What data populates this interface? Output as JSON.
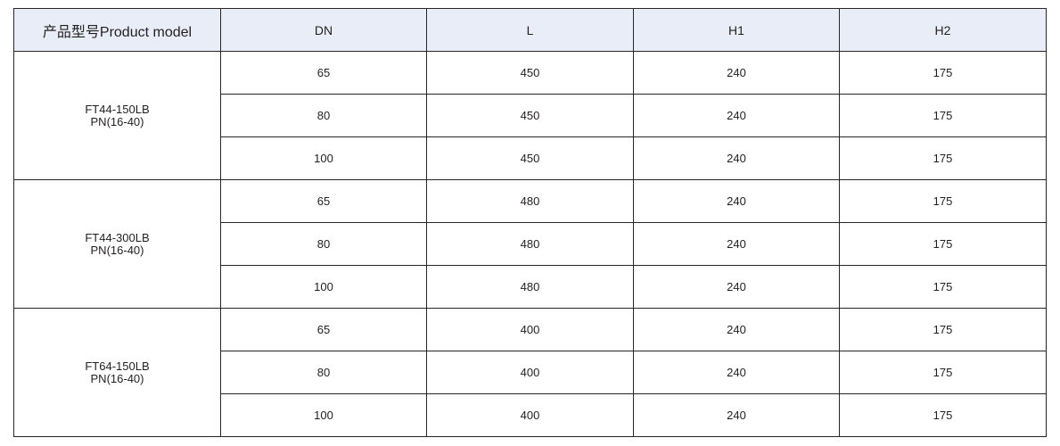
{
  "headers": [
    "产品型号Product model",
    "DN",
    "L",
    "H1",
    "H2"
  ],
  "groups": [
    {
      "model": "FT44-150LB",
      "pressure": "PN(16-40)",
      "rows": [
        {
          "DN": "65",
          "L": "450",
          "H1": "240",
          "H2": "175"
        },
        {
          "DN": "80",
          "L": "450",
          "H1": "240",
          "H2": "175"
        },
        {
          "DN": "100",
          "L": "450",
          "H1": "240",
          "H2": "175"
        }
      ]
    },
    {
      "model": "FT44-300LB",
      "pressure": "PN(16-40)",
      "rows": [
        {
          "DN": "65",
          "L": "480",
          "H1": "240",
          "H2": "175"
        },
        {
          "DN": "80",
          "L": "480",
          "H1": "240",
          "H2": "175"
        },
        {
          "DN": "100",
          "L": "480",
          "H1": "240",
          "H2": "175"
        }
      ]
    },
    {
      "model": "FT64-150LB",
      "pressure": "PN(16-40)",
      "rows": [
        {
          "DN": "65",
          "L": "400",
          "H1": "240",
          "H2": "175"
        },
        {
          "DN": "80",
          "L": "400",
          "H1": "240",
          "H2": "175"
        },
        {
          "DN": "100",
          "L": "400",
          "H1": "240",
          "H2": "175"
        }
      ]
    }
  ],
  "colors": {
    "header_bg": "#e8edf8",
    "border": "#2a2425",
    "text": "#231f20"
  }
}
